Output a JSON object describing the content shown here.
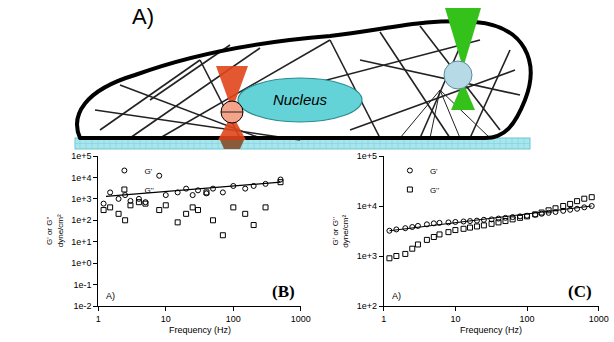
{
  "diagram": {
    "label": "A)",
    "nucleus": {
      "label": "Nucleus"
    }
  },
  "chart_data": [
    {
      "type": "scatter",
      "annotations": [
        "A)",
        "(B)"
      ],
      "xlabel": "Frequency (Hz)",
      "ylabel": "G' or G''\ndyne/cm²",
      "log": true,
      "grid": false,
      "legend": "top left",
      "xlim": [
        1,
        1000
      ],
      "xticks": [
        1,
        10,
        100,
        1000
      ],
      "ylim": [
        0.01,
        100000
      ],
      "yticks": [
        {
          "value": 0.01,
          "label": "1e-2"
        },
        {
          "value": 0.1,
          "label": "1e-1"
        },
        {
          "value": 1,
          "label": "1e+0"
        },
        {
          "value": 10,
          "label": "1e+1"
        },
        {
          "value": 100,
          "label": "1e+2"
        },
        {
          "value": 1000,
          "label": "1e+3"
        },
        {
          "value": 10000,
          "label": "1e+4"
        },
        {
          "value": 100000,
          "label": "1e+5"
        }
      ],
      "series": [
        {
          "name": "G'",
          "color": "#000000",
          "marker": "circle",
          "x": [
            1.2,
            1.5,
            2,
            2.5,
            3,
            4,
            5,
            8,
            10,
            15,
            20,
            25,
            30,
            40,
            50,
            70,
            100,
            150,
            200,
            300,
            500
          ],
          "values": [
            600,
            2000,
            1000,
            1500,
            800,
            1000,
            700,
            12000,
            1500,
            2000,
            3000,
            1500,
            2500,
            1800,
            3000,
            2000,
            4000,
            3000,
            4000,
            5000,
            8000
          ]
        },
        {
          "name": "G''",
          "color": "#000000",
          "marker": "square",
          "x": [
            1.2,
            1.5,
            2,
            2.5,
            3,
            4,
            5,
            8,
            10,
            15,
            20,
            25,
            30,
            40,
            50,
            70,
            100,
            150,
            200,
            300,
            500
          ],
          "values": [
            300,
            400,
            200,
            100,
            500,
            700,
            600,
            300,
            500,
            80,
            200,
            400,
            300,
            2000,
            100,
            20,
            400,
            200,
            60,
            400,
            6000
          ]
        },
        {
          "type": "line",
          "color": "#000000",
          "line_style": "solid",
          "x": [
            1.3,
            500
          ],
          "values": [
            1300,
            6000
          ]
        }
      ]
    },
    {
      "type": "scatter",
      "annotations": [
        "A)",
        "(C)"
      ],
      "xlabel": "Frequency (Hz)",
      "ylabel": "G' or G''\ndyne/cm²",
      "log": true,
      "grid": false,
      "legend": "top left",
      "xlim": [
        1,
        1000
      ],
      "xticks": [
        1,
        10,
        100,
        1000
      ],
      "ylim": [
        100,
        100000
      ],
      "yticks": [
        {
          "value": 100,
          "label": "1e+2"
        },
        {
          "value": 1000,
          "label": "1e+3"
        },
        {
          "value": 10000,
          "label": "1e+4"
        },
        {
          "value": 100000,
          "label": "1e+5"
        }
      ],
      "series": [
        {
          "name": "G'",
          "color": "#000000",
          "marker": "circle",
          "x": [
            1.2,
            1.5,
            2,
            2.5,
            3,
            4,
            5,
            6,
            8,
            10,
            13,
            16,
            20,
            25,
            32,
            40,
            50,
            63,
            80,
            100,
            130,
            160,
            200,
            250,
            320,
            400,
            500,
            630,
            800
          ],
          "values": [
            3200,
            3400,
            3600,
            3800,
            4000,
            4300,
            4500,
            4600,
            4700,
            4800,
            4900,
            5000,
            5100,
            5300,
            5400,
            5600,
            5800,
            6000,
            6200,
            6400,
            6700,
            7000,
            7300,
            7600,
            8000,
            8400,
            8800,
            9400,
            10000
          ]
        },
        {
          "name": "G''",
          "color": "#000000",
          "marker": "square",
          "x": [
            1.2,
            1.5,
            2,
            2.5,
            3,
            4,
            5,
            6,
            8,
            10,
            13,
            16,
            20,
            25,
            32,
            40,
            50,
            63,
            80,
            100,
            130,
            160,
            200,
            250,
            320,
            400,
            500,
            630,
            800
          ],
          "values": [
            900,
            1000,
            1100,
            1400,
            1700,
            2100,
            2400,
            2700,
            3000,
            3300,
            3500,
            3700,
            3900,
            4100,
            4400,
            4700,
            5000,
            5400,
            5800,
            6200,
            6800,
            7400,
            8200,
            9000,
            10000,
            11000,
            12500,
            14000,
            15000
          ]
        },
        {
          "type": "line",
          "color": "#000000",
          "line_style": "solid",
          "x": [
            1.2,
            800
          ],
          "values": [
            3200,
            10000
          ]
        }
      ]
    }
  ]
}
